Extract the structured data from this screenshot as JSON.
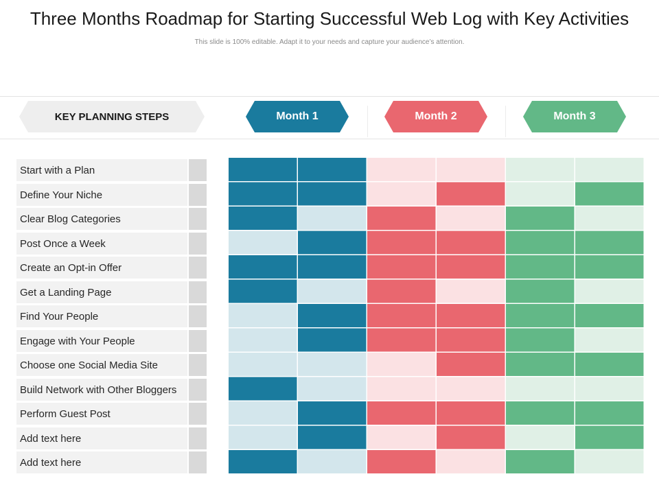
{
  "title": "Three Months Roadmap for Starting Successful Web Log with Key Activities",
  "subtitle": "This slide is 100% editable. Adapt it to your needs and capture your audience’s attention.",
  "header": {
    "planning_label": "KEY PLANNING STEPS",
    "months": [
      "Month 1",
      "Month 2",
      "Month 3"
    ]
  },
  "colors": {
    "month_1": {
      "dark": "#1a7b9e",
      "light": "#d3e6ec"
    },
    "month_2": {
      "dark": "#e9676f",
      "light": "#fbe1e3"
    },
    "month_3": {
      "dark": "#62b887",
      "light": "#e0f0e6"
    },
    "planning_bg": "#eeeeee"
  },
  "steps": [
    "Start with a Plan",
    "Define Your Niche",
    "Clear Blog Categories",
    "Post Once a Week",
    "Create an Opt-in Offer",
    "Get a Landing Page",
    "Find Your People",
    "Engage with Your People",
    "Choose one Social Media Site",
    "Build Network with Other Bloggers",
    "Perform Guest Post",
    "Add text here",
    "Add text here"
  ],
  "activity_grid": [
    [
      1,
      1,
      0,
      0,
      0,
      0
    ],
    [
      1,
      1,
      0,
      1,
      0,
      1
    ],
    [
      1,
      0,
      1,
      0,
      1,
      0
    ],
    [
      0,
      1,
      1,
      1,
      1,
      1
    ],
    [
      1,
      1,
      1,
      1,
      1,
      1
    ],
    [
      1,
      0,
      1,
      0,
      1,
      0
    ],
    [
      0,
      1,
      1,
      1,
      1,
      1
    ],
    [
      0,
      1,
      1,
      1,
      1,
      0
    ],
    [
      0,
      0,
      0,
      1,
      1,
      1
    ],
    [
      1,
      0,
      0,
      0,
      0,
      0
    ],
    [
      0,
      1,
      1,
      1,
      1,
      1
    ],
    [
      0,
      1,
      0,
      1,
      0,
      1
    ],
    [
      1,
      0,
      1,
      0,
      1,
      0
    ]
  ]
}
